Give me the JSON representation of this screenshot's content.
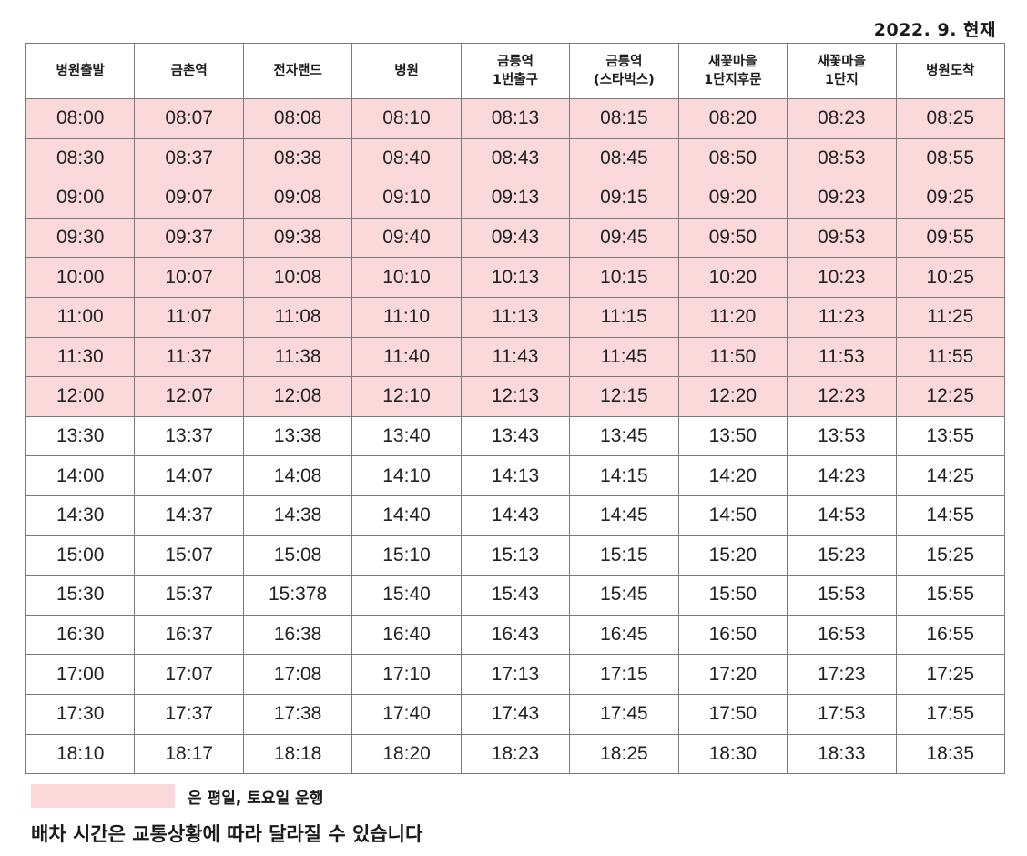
{
  "as_of": "2022. 9. 현재",
  "columns": [
    [
      "병원출발"
    ],
    [
      "금촌역"
    ],
    [
      "전자랜드"
    ],
    [
      "병원"
    ],
    [
      "금릉역",
      "1번출구"
    ],
    [
      "금릉역",
      "(스타벅스)"
    ],
    [
      "새꽃마을",
      "1단지후문"
    ],
    [
      "새꽃마을",
      "1단지"
    ],
    [
      "병원도착"
    ]
  ],
  "rows": [
    {
      "highlight": true,
      "times": [
        "08:00",
        "08:07",
        "08:08",
        "08:10",
        "08:13",
        "08:15",
        "08:20",
        "08:23",
        "08:25"
      ]
    },
    {
      "highlight": true,
      "times": [
        "08:30",
        "08:37",
        "08:38",
        "08:40",
        "08:43",
        "08:45",
        "08:50",
        "08:53",
        "08:55"
      ]
    },
    {
      "highlight": true,
      "times": [
        "09:00",
        "09:07",
        "09:08",
        "09:10",
        "09:13",
        "09:15",
        "09:20",
        "09:23",
        "09:25"
      ]
    },
    {
      "highlight": true,
      "times": [
        "09:30",
        "09:37",
        "09:38",
        "09:40",
        "09:43",
        "09:45",
        "09:50",
        "09:53",
        "09:55"
      ]
    },
    {
      "highlight": true,
      "times": [
        "10:00",
        "10:07",
        "10:08",
        "10:10",
        "10:13",
        "10:15",
        "10:20",
        "10:23",
        "10:25"
      ]
    },
    {
      "highlight": true,
      "times": [
        "11:00",
        "11:07",
        "11:08",
        "11:10",
        "11:13",
        "11:15",
        "11:20",
        "11:23",
        "11:25"
      ]
    },
    {
      "highlight": true,
      "times": [
        "11:30",
        "11:37",
        "11:38",
        "11:40",
        "11:43",
        "11:45",
        "11:50",
        "11:53",
        "11:55"
      ]
    },
    {
      "highlight": true,
      "times": [
        "12:00",
        "12:07",
        "12:08",
        "12:10",
        "12:13",
        "12:15",
        "12:20",
        "12:23",
        "12:25"
      ]
    },
    {
      "highlight": false,
      "times": [
        "13:30",
        "13:37",
        "13:38",
        "13:40",
        "13:43",
        "13:45",
        "13:50",
        "13:53",
        "13:55"
      ]
    },
    {
      "highlight": false,
      "times": [
        "14:00",
        "14:07",
        "14:08",
        "14:10",
        "14:13",
        "14:15",
        "14:20",
        "14:23",
        "14:25"
      ]
    },
    {
      "highlight": false,
      "times": [
        "14:30",
        "14:37",
        "14:38",
        "14:40",
        "14:43",
        "14:45",
        "14:50",
        "14:53",
        "14:55"
      ]
    },
    {
      "highlight": false,
      "times": [
        "15:00",
        "15:07",
        "15:08",
        "15:10",
        "15:13",
        "15:15",
        "15:20",
        "15:23",
        "15:25"
      ]
    },
    {
      "highlight": false,
      "times": [
        "15:30",
        "15:37",
        "15:378",
        "15:40",
        "15:43",
        "15:45",
        "15:50",
        "15:53",
        "15:55"
      ]
    },
    {
      "highlight": false,
      "times": [
        "16:30",
        "16:37",
        "16:38",
        "16:40",
        "16:43",
        "16:45",
        "16:50",
        "16:53",
        "16:55"
      ]
    },
    {
      "highlight": false,
      "times": [
        "17:00",
        "17:07",
        "17:08",
        "17:10",
        "17:13",
        "17:15",
        "17:20",
        "17:23",
        "17:25"
      ]
    },
    {
      "highlight": false,
      "times": [
        "17:30",
        "17:37",
        "17:38",
        "17:40",
        "17:43",
        "17:45",
        "17:50",
        "17:53",
        "17:55"
      ]
    },
    {
      "highlight": false,
      "times": [
        "18:10",
        "18:17",
        "18:18",
        "18:20",
        "18:23",
        "18:25",
        "18:30",
        "18:33",
        "18:35"
      ]
    }
  ],
  "legend": {
    "color": "#fbd9db",
    "text": "은 평일, 토요일 운행"
  },
  "note": "배차 시간은 교통상황에 따라 달라질 수 있습니다"
}
